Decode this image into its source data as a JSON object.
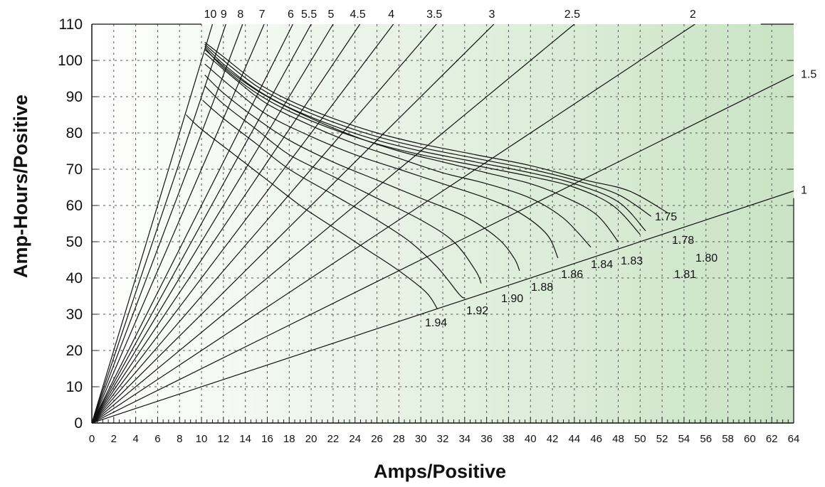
{
  "chart_data": {
    "type": "line",
    "title": "",
    "xlabel": "Amps/Positive",
    "ylabel": "Amp-Hours/Positive",
    "xlim": [
      0,
      64
    ],
    "ylim": [
      0,
      110
    ],
    "x_ticks": [
      "0",
      "2",
      "4",
      "6",
      "8",
      "10",
      "12",
      "14",
      "16",
      "18",
      "20",
      "22",
      "24",
      "26",
      "28",
      "30",
      "32",
      "34",
      "36",
      "38",
      "40",
      "42",
      "44",
      "46",
      "48",
      "50",
      "52",
      "54",
      "56",
      "58",
      "60",
      "62",
      "64"
    ],
    "y_ticks": [
      "0",
      "10",
      "20",
      "30",
      "40",
      "50",
      "60",
      "70",
      "80",
      "90",
      "100",
      "110"
    ],
    "grid": true,
    "background": {
      "from": "#ffffff",
      "to": "#c9e3c4"
    },
    "rate_lines": [
      {
        "label": "10",
        "hours": 10
      },
      {
        "label": "9",
        "hours": 9
      },
      {
        "label": "8",
        "hours": 8
      },
      {
        "label": "7",
        "hours": 7
      },
      {
        "label": "6",
        "hours": 6
      },
      {
        "label": "5.5",
        "hours": 5.5
      },
      {
        "label": "5",
        "hours": 5
      },
      {
        "label": "4.5",
        "hours": 4.5
      },
      {
        "label": "4",
        "hours": 4
      },
      {
        "label": "3.5",
        "hours": 3.5
      },
      {
        "label": "3",
        "hours": 3
      },
      {
        "label": "2.5",
        "hours": 2.5
      },
      {
        "label": "2",
        "hours": 2
      },
      {
        "label": "1.5",
        "hours": 1.5
      },
      {
        "label": "1",
        "hours": 1
      }
    ],
    "final_voltage_curves": [
      {
        "label": "1.75",
        "points": [
          [
            10.3,
            105
          ],
          [
            12,
            101
          ],
          [
            15,
            94
          ],
          [
            18,
            89
          ],
          [
            22,
            84
          ],
          [
            26,
            80
          ],
          [
            30,
            77
          ],
          [
            35,
            74
          ],
          [
            40,
            71
          ],
          [
            45,
            67
          ],
          [
            49,
            64
          ],
          [
            52.5,
            58
          ]
        ]
      },
      {
        "label": "1.78",
        "points": [
          [
            10.3,
            104.5
          ],
          [
            12,
            100
          ],
          [
            15,
            93
          ],
          [
            18,
            88
          ],
          [
            22,
            83
          ],
          [
            26,
            79
          ],
          [
            30,
            76
          ],
          [
            35,
            73
          ],
          [
            40,
            70
          ],
          [
            44,
            67
          ],
          [
            48,
            63
          ],
          [
            51,
            57
          ]
        ]
      },
      {
        "label": "1.80",
        "points": [
          [
            10.3,
            104
          ],
          [
            12,
            99
          ],
          [
            15,
            92
          ],
          [
            18,
            87
          ],
          [
            22,
            82
          ],
          [
            26,
            78
          ],
          [
            30,
            75
          ],
          [
            35,
            72
          ],
          [
            40,
            69
          ],
          [
            44,
            66
          ],
          [
            48,
            61
          ],
          [
            50.5,
            53
          ]
        ]
      },
      {
        "label": "1.81",
        "points": [
          [
            10.3,
            103.5
          ],
          [
            12,
            98
          ],
          [
            15,
            91
          ],
          [
            18,
            86
          ],
          [
            22,
            81
          ],
          [
            26,
            77
          ],
          [
            30,
            74
          ],
          [
            35,
            71
          ],
          [
            40,
            68
          ],
          [
            44,
            65
          ],
          [
            47.5,
            60
          ],
          [
            50,
            52
          ]
        ]
      },
      {
        "label": "1.83",
        "points": [
          [
            10.3,
            103
          ],
          [
            13,
            96
          ],
          [
            16,
            90
          ],
          [
            20,
            84
          ],
          [
            24,
            79
          ],
          [
            28,
            75
          ],
          [
            32,
            72
          ],
          [
            36,
            69
          ],
          [
            40,
            66
          ],
          [
            43,
            62.5
          ],
          [
            46,
            57.5
          ],
          [
            48,
            50
          ]
        ]
      },
      {
        "label": "1.84",
        "points": [
          [
            10.3,
            102
          ],
          [
            13,
            95
          ],
          [
            16,
            88
          ],
          [
            20,
            82
          ],
          [
            24,
            77
          ],
          [
            28,
            73
          ],
          [
            32,
            69
          ],
          [
            36,
            66
          ],
          [
            40,
            62
          ],
          [
            43,
            56.5
          ],
          [
            45.5,
            48.5
          ]
        ]
      },
      {
        "label": "1.86",
        "points": [
          [
            10.3,
            99
          ],
          [
            13,
            92
          ],
          [
            16,
            85
          ],
          [
            20,
            79
          ],
          [
            24,
            74
          ],
          [
            28,
            70
          ],
          [
            32,
            66
          ],
          [
            36,
            62
          ],
          [
            39,
            58
          ],
          [
            41.5,
            52
          ],
          [
            42.5,
            45.5
          ]
        ]
      },
      {
        "label": "1.88",
        "points": [
          [
            10.3,
            96
          ],
          [
            12,
            91
          ],
          [
            15,
            84
          ],
          [
            18,
            78
          ],
          [
            22,
            72
          ],
          [
            26,
            67
          ],
          [
            30,
            62
          ],
          [
            34,
            57
          ],
          [
            37,
            51
          ],
          [
            38.5,
            45.5
          ],
          [
            39,
            42
          ]
        ]
      },
      {
        "label": "1.90",
        "points": [
          [
            10.3,
            93
          ],
          [
            12,
            88
          ],
          [
            15,
            81
          ],
          [
            18,
            74
          ],
          [
            22,
            68
          ],
          [
            26,
            62
          ],
          [
            30,
            56
          ],
          [
            33,
            50
          ],
          [
            35,
            42
          ],
          [
            35.5,
            38.5
          ]
        ]
      },
      {
        "label": "1.92",
        "points": [
          [
            10.1,
            89
          ],
          [
            12,
            84
          ],
          [
            15,
            77
          ],
          [
            18,
            70
          ],
          [
            22,
            63
          ],
          [
            26,
            56
          ],
          [
            29,
            50
          ],
          [
            31.5,
            43
          ],
          [
            33.5,
            35.5
          ],
          [
            34,
            34.5
          ]
        ]
      },
      {
        "label": "1.94",
        "points": [
          [
            8.6,
            85
          ],
          [
            10,
            81
          ],
          [
            13,
            74
          ],
          [
            16,
            67
          ],
          [
            19,
            60
          ],
          [
            22,
            54
          ],
          [
            25,
            48
          ],
          [
            28,
            42
          ],
          [
            30.5,
            36
          ],
          [
            31.5,
            31.5
          ]
        ]
      }
    ]
  }
}
